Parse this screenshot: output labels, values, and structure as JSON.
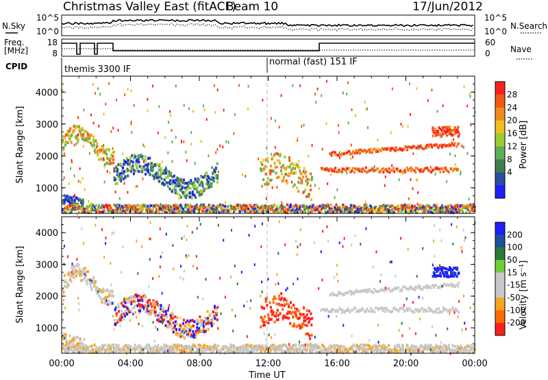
{
  "header": {
    "title": "Christmas Valley East (fitACF)",
    "beam": "Beam 10",
    "date": "17/Jun/2012"
  },
  "panels": {
    "nsky_label": "N.Sky",
    "nsky_ticks": [
      "10^5",
      "10^0"
    ],
    "nsearch_label": "N.Search",
    "freq_label_1": "Freq.",
    "freq_label_2": "[MHz]",
    "freq_ticks": [
      "18",
      "8"
    ],
    "nave_label": "Nave",
    "nave_ticks": [
      "60",
      "0"
    ],
    "cpid_label": "CPID",
    "cpid_1": "themis 3300 IF",
    "cpid_2": "normal (fast) 151 IF"
  },
  "colors": {
    "power": [
      "#1e1eff",
      "#2b4fa0",
      "#3f7f4f",
      "#5fae5a",
      "#9acd32",
      "#f0c020",
      "#f08c1e",
      "#f05a14",
      "#ff1e1e"
    ],
    "velocity": [
      "#1e1eff",
      "#1e50a0",
      "#2b7a3a",
      "#6fcf3a",
      "#c8c8c8",
      "#c8c8c8",
      "#f5a623",
      "#ff6a00",
      "#ff1e1e"
    ]
  },
  "chart_data": [
    {
      "type": "heatmap",
      "ylabel": "Slant Range [km]",
      "yticks": [
        1000,
        2000,
        3000,
        4000
      ],
      "ylim": [
        200,
        4500
      ],
      "xticks": [
        "00:00",
        "04:00",
        "08:00",
        "12:00",
        "16:00",
        "20:00",
        "00:00"
      ],
      "xlim_hours": [
        0,
        24
      ],
      "colorbar_label": "Power [dB]",
      "colorbar_ticks": [
        "28",
        "24",
        "20",
        "16",
        "12",
        "8",
        "4"
      ]
    },
    {
      "type": "heatmap",
      "ylabel": "Slant Range [km]",
      "yticks": [
        1000,
        2000,
        3000,
        4000
      ],
      "ylim": [
        200,
        4500
      ],
      "xticks": [
        "00:00",
        "04:00",
        "08:00",
        "12:00",
        "16:00",
        "20:00",
        "00:00"
      ],
      "xlim_hours": [
        0,
        24
      ],
      "xlabel": "Time UT",
      "colorbar_label": "Velocity [m s⁻¹]",
      "colorbar_ticks": [
        "200",
        "100",
        "50",
        "15",
        "-15",
        "-50",
        "-100",
        "-200"
      ]
    }
  ]
}
